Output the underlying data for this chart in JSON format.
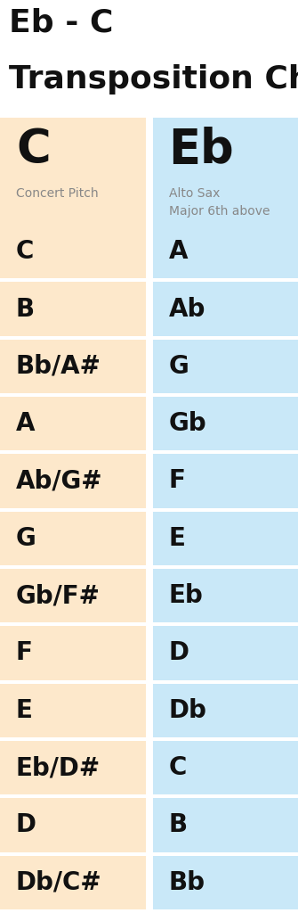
{
  "title_line1": "Eb - C",
  "title_line2": "Transposition Chart",
  "col1_header": "C",
  "col2_header": "Eb",
  "col1_subheader": "Concert Pitch",
  "col2_subheader": "Alto Sax\nMajor 6th above",
  "col1_color": "#fde8cb",
  "col2_color": "#c9e8f8",
  "col1_text_color": "#111111",
  "col2_text_color": "#111111",
  "subheader_color": "#888888",
  "title_color": "#111111",
  "bg_color": "#ffffff",
  "separator_color": "#ffffff",
  "rows": [
    [
      "C",
      "A"
    ],
    [
      "B",
      "Ab"
    ],
    [
      "Bb/A#",
      "G"
    ],
    [
      "A",
      "Gb"
    ],
    [
      "Ab/G#",
      "F"
    ],
    [
      "G",
      "E"
    ],
    [
      "Gb/F#",
      "Eb"
    ],
    [
      "F",
      "D"
    ],
    [
      "E",
      "Db"
    ],
    [
      "Eb/D#",
      "C"
    ],
    [
      "D",
      "B"
    ],
    [
      "Db/C#",
      "Bb"
    ]
  ],
  "fig_w": 3.35,
  "fig_h": 10.24,
  "dpi": 100
}
